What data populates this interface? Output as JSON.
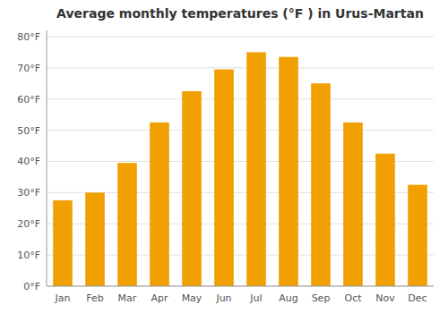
{
  "chart_data": {
    "type": "bar",
    "title": "Average monthly temperatures (°F ) in Urus-Martan",
    "categories": [
      "Jan",
      "Feb",
      "Mar",
      "Apr",
      "May",
      "Jun",
      "Jul",
      "Aug",
      "Sep",
      "Oct",
      "Nov",
      "Dec"
    ],
    "values": [
      27.5,
      30.0,
      39.5,
      52.5,
      62.5,
      69.5,
      75.0,
      73.5,
      65.0,
      52.5,
      42.5,
      32.5
    ],
    "color": "#F0A000",
    "ylim": [
      0,
      82
    ],
    "yticks": [
      {
        "value": 0,
        "label": "0°F"
      },
      {
        "value": 10,
        "label": "10°F"
      },
      {
        "value": 20,
        "label": "20°F"
      },
      {
        "value": 30,
        "label": "30°F"
      },
      {
        "value": 40,
        "label": "40°F"
      },
      {
        "value": 50,
        "label": "50°F"
      },
      {
        "value": 60,
        "label": "60°F"
      },
      {
        "value": 70,
        "label": "70°F"
      },
      {
        "value": 80,
        "label": "80°F"
      }
    ],
    "grid": true
  }
}
